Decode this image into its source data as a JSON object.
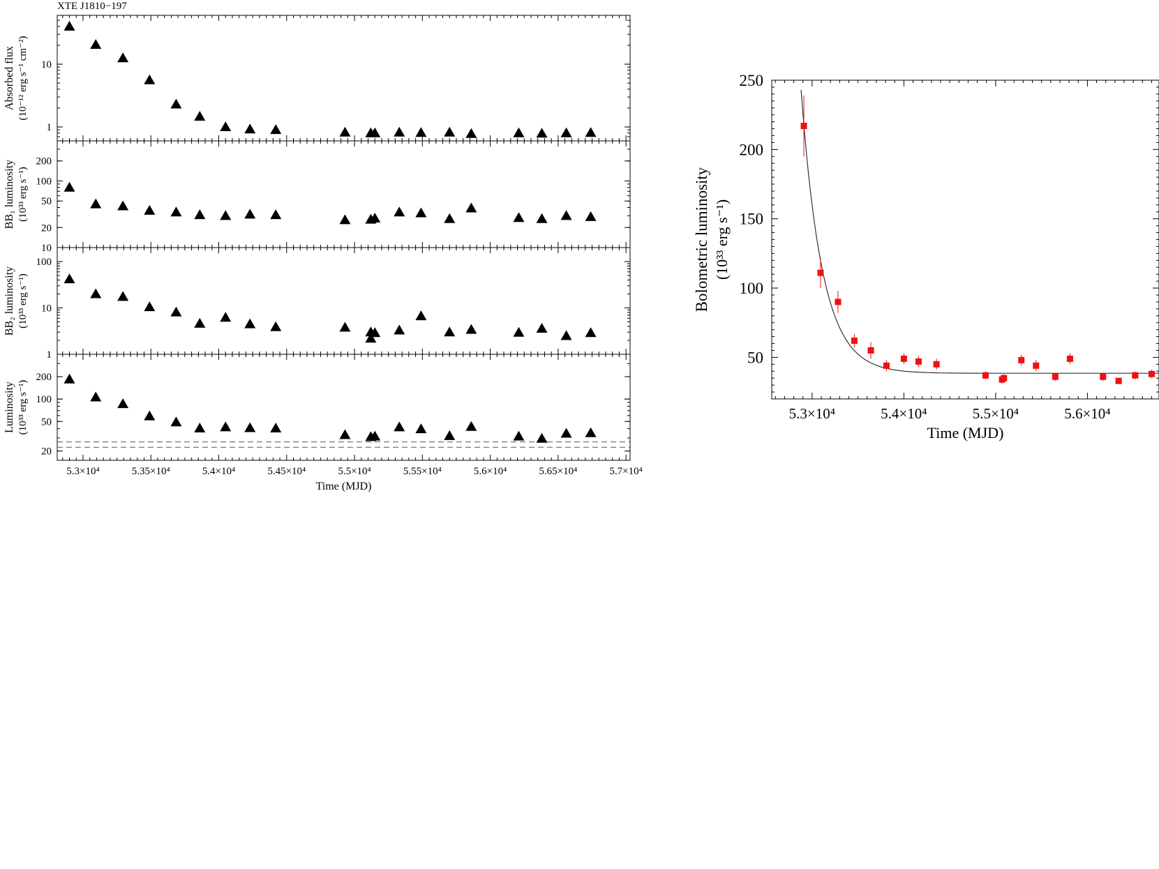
{
  "figure_title": "XTE J1810−197",
  "colors": {
    "axis": "#000000",
    "markers_left": "#000000",
    "markers_right": "#ee1111",
    "fit_curve": "#333333",
    "reference_lines": "#555555"
  },
  "chart_data": [
    {
      "type": "scatter",
      "title": "XTE J1810−197",
      "layout": "four stacked panels sharing x axis",
      "xlabel": "Time (MJD)",
      "xlim": [
        52810,
        57030
      ],
      "x_ticks": [
        53000,
        53500,
        54000,
        54500,
        55000,
        55500,
        56000,
        56500,
        57000
      ],
      "x_ticklabels": [
        "5.3×10⁴",
        "5.35×10⁴",
        "5.4×10⁴",
        "5.45×10⁴",
        "5.5×10⁴",
        "5.55×10⁴",
        "5.6×10⁴",
        "5.65×10⁴",
        "5.7×10⁴"
      ],
      "panels": [
        {
          "ylabel_line1": "Absorbed flux",
          "ylabel_line2": "(10⁻¹² erg s⁻¹ cm⁻²)",
          "yscale": "log",
          "ylim": [
            0.6,
            60
          ],
          "y_ticks": [
            1,
            10
          ],
          "y_ticklabels": [
            "1",
            "10"
          ],
          "marker": "triangle",
          "points": [
            {
              "x": 52900,
              "y": 40
            },
            {
              "x": 53094,
              "y": 20.5
            },
            {
              "x": 53294,
              "y": 12.5
            },
            {
              "x": 53490,
              "y": 5.6
            },
            {
              "x": 53686,
              "y": 2.3
            },
            {
              "x": 53860,
              "y": 1.47
            },
            {
              "x": 54050,
              "y": 1.0
            },
            {
              "x": 54230,
              "y": 0.92
            },
            {
              "x": 54420,
              "y": 0.9
            },
            {
              "x": 54930,
              "y": 0.82
            },
            {
              "x": 55120,
              "y": 0.8
            },
            {
              "x": 55150,
              "y": 0.8
            },
            {
              "x": 55330,
              "y": 0.82
            },
            {
              "x": 55490,
              "y": 0.81
            },
            {
              "x": 55700,
              "y": 0.82
            },
            {
              "x": 55860,
              "y": 0.78
            },
            {
              "x": 56210,
              "y": 0.8
            },
            {
              "x": 56380,
              "y": 0.79
            },
            {
              "x": 56560,
              "y": 0.8
            },
            {
              "x": 56740,
              "y": 0.81
            }
          ]
        },
        {
          "ylabel_line1": "BB₁ luminosity",
          "ylabel_line2": "(10³³ erg s⁻¹)",
          "yscale": "log",
          "ylim": [
            10,
            400
          ],
          "y_ticks": [
            10,
            20,
            50,
            100,
            200
          ],
          "y_ticklabels": [
            "10",
            "20",
            "50",
            "100",
            "200"
          ],
          "marker": "triangle",
          "points": [
            {
              "x": 52900,
              "y": 80
            },
            {
              "x": 53094,
              "y": 45
            },
            {
              "x": 53294,
              "y": 42
            },
            {
              "x": 53490,
              "y": 36
            },
            {
              "x": 53686,
              "y": 34
            },
            {
              "x": 53860,
              "y": 31
            },
            {
              "x": 54050,
              "y": 30
            },
            {
              "x": 54230,
              "y": 31.5
            },
            {
              "x": 54420,
              "y": 31
            },
            {
              "x": 54930,
              "y": 26
            },
            {
              "x": 55120,
              "y": 26.5
            },
            {
              "x": 55150,
              "y": 27.5
            },
            {
              "x": 55330,
              "y": 34
            },
            {
              "x": 55490,
              "y": 33
            },
            {
              "x": 55700,
              "y": 27
            },
            {
              "x": 55860,
              "y": 39
            },
            {
              "x": 56210,
              "y": 28
            },
            {
              "x": 56380,
              "y": 27
            },
            {
              "x": 56560,
              "y": 30
            },
            {
              "x": 56740,
              "y": 29
            }
          ]
        },
        {
          "ylabel_line1": "BB₂ luminosity",
          "ylabel_line2": "(10³³ erg s⁻¹)",
          "yscale": "log",
          "ylim": [
            1,
            200
          ],
          "y_ticks": [
            1,
            10,
            100
          ],
          "y_ticklabels": [
            "1",
            "10",
            "100"
          ],
          "marker": "triangle",
          "points": [
            {
              "x": 52900,
              "y": 42
            },
            {
              "x": 53094,
              "y": 20
            },
            {
              "x": 53294,
              "y": 17.5
            },
            {
              "x": 53490,
              "y": 10.5
            },
            {
              "x": 53686,
              "y": 8.1
            },
            {
              "x": 53860,
              "y": 4.6
            },
            {
              "x": 54050,
              "y": 6.2
            },
            {
              "x": 54230,
              "y": 4.5
            },
            {
              "x": 54420,
              "y": 3.9
            },
            {
              "x": 54930,
              "y": 3.8
            },
            {
              "x": 55120,
              "y": 3.0
            },
            {
              "x": 55120,
              "y": 2.2
            },
            {
              "x": 55150,
              "y": 2.9
            },
            {
              "x": 55330,
              "y": 3.3
            },
            {
              "x": 55490,
              "y": 6.7
            },
            {
              "x": 55700,
              "y": 3.0
            },
            {
              "x": 55860,
              "y": 3.4
            },
            {
              "x": 56210,
              "y": 2.95
            },
            {
              "x": 56380,
              "y": 3.6
            },
            {
              "x": 56560,
              "y": 2.5
            },
            {
              "x": 56740,
              "y": 2.9
            }
          ]
        },
        {
          "ylabel_line1": "Luminosity",
          "ylabel_line2": "(10³³ erg s⁻¹)",
          "yscale": "log",
          "ylim": [
            15,
            400
          ],
          "y_ticks": [
            20,
            50,
            100,
            200
          ],
          "y_ticklabels": [
            "20",
            "50",
            "100",
            "200"
          ],
          "marker": "triangle",
          "reference_lines": [
            26.5,
            22.5
          ],
          "points": [
            {
              "x": 52900,
              "y": 185
            },
            {
              "x": 53094,
              "y": 106
            },
            {
              "x": 53294,
              "y": 86
            },
            {
              "x": 53490,
              "y": 59
            },
            {
              "x": 53686,
              "y": 49
            },
            {
              "x": 53860,
              "y": 40.5
            },
            {
              "x": 54050,
              "y": 42
            },
            {
              "x": 54230,
              "y": 41
            },
            {
              "x": 54420,
              "y": 40.5
            },
            {
              "x": 54930,
              "y": 33
            },
            {
              "x": 55120,
              "y": 31
            },
            {
              "x": 55150,
              "y": 31.5
            },
            {
              "x": 55330,
              "y": 42
            },
            {
              "x": 55490,
              "y": 39.5
            },
            {
              "x": 55700,
              "y": 32
            },
            {
              "x": 55860,
              "y": 42.5
            },
            {
              "x": 56210,
              "y": 31.5
            },
            {
              "x": 56380,
              "y": 29.5
            },
            {
              "x": 56560,
              "y": 34.5
            },
            {
              "x": 56740,
              "y": 35
            }
          ]
        }
      ]
    },
    {
      "type": "scatter",
      "xlabel": "Time (MJD)",
      "ylabel_line1": "Bolometric luminosity",
      "ylabel_line2": "(10³³ erg s⁻¹)",
      "xlim": [
        52560,
        56780
      ],
      "ylim": [
        20,
        250
      ],
      "x_ticks": [
        53000,
        54000,
        55000,
        56000
      ],
      "x_ticklabels": [
        "5.3×10⁴",
        "5.4×10⁴",
        "5.5×10⁴",
        "5.6×10⁴"
      ],
      "y_ticks": [
        50,
        100,
        150,
        200,
        250
      ],
      "y_ticklabels": [
        "50",
        "100",
        "150",
        "200",
        "250"
      ],
      "marker": "square",
      "fit": {
        "model": "exponential decay",
        "baseline": 38.5,
        "amplitude": 179.5,
        "t0": 52910,
        "tau": 230
      },
      "points": [
        {
          "x": 52910,
          "y": 217,
          "err": 22
        },
        {
          "x": 53092,
          "y": 111,
          "err": 11
        },
        {
          "x": 53282,
          "y": 90,
          "err": 8
        },
        {
          "x": 53460,
          "y": 62,
          "err": 5
        },
        {
          "x": 53640,
          "y": 55,
          "err": 6
        },
        {
          "x": 53810,
          "y": 44,
          "err": 4
        },
        {
          "x": 54000,
          "y": 49,
          "err": 4
        },
        {
          "x": 54160,
          "y": 47,
          "err": 4
        },
        {
          "x": 54355,
          "y": 45,
          "err": 4
        },
        {
          "x": 54890,
          "y": 37,
          "err": 3
        },
        {
          "x": 55070,
          "y": 34,
          "err": 3
        },
        {
          "x": 55090,
          "y": 35,
          "err": 3
        },
        {
          "x": 55280,
          "y": 48,
          "err": 4
        },
        {
          "x": 55440,
          "y": 44,
          "err": 4
        },
        {
          "x": 55650,
          "y": 36,
          "err": 3
        },
        {
          "x": 55810,
          "y": 49,
          "err": 4
        },
        {
          "x": 56170,
          "y": 36,
          "err": 3
        },
        {
          "x": 56340,
          "y": 33,
          "err": 2
        },
        {
          "x": 56520,
          "y": 37,
          "err": 3
        },
        {
          "x": 56700,
          "y": 38,
          "err": 3
        }
      ]
    }
  ]
}
